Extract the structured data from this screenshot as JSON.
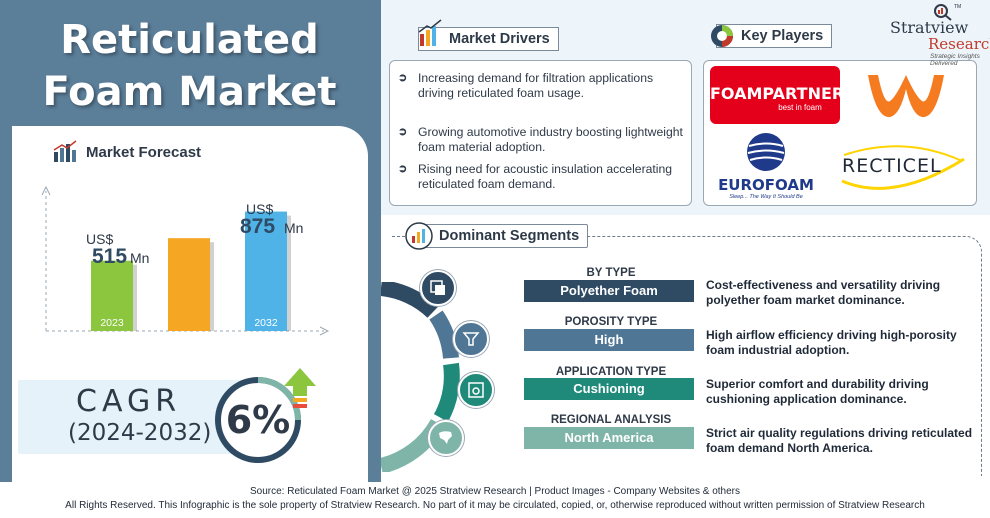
{
  "title": {
    "line1": "Reticulated",
    "line2": "Foam Market"
  },
  "forecast": {
    "heading": "Market Forecast",
    "bar1_currency": "US$",
    "bar1_value": "515",
    "bar1_unit": "Mn",
    "bar1_year": "2023",
    "bar3_currency": "US$",
    "bar3_value": "875",
    "bar3_unit": "Mn",
    "bar3_year": "2032"
  },
  "chart_data": {
    "type": "bar",
    "categories": [
      "2023",
      "",
      "2032"
    ],
    "values": [
      515,
      680,
      875
    ],
    "ylim": [
      0,
      1000
    ],
    "colors": [
      "#8cc63f",
      "#f5a623",
      "#4fb3e8"
    ]
  },
  "cagr": {
    "label": "CAGR",
    "period": "(2024-2032)",
    "value": "6%"
  },
  "drivers": {
    "heading": "Market Drivers",
    "items": [
      "Increasing demand for filtration applications driving reticulated foam usage.",
      "Growing automotive industry boosting lightweight foam material adoption.",
      "Rising need for acoustic insulation accelerating reticulated foam demand."
    ]
  },
  "players": {
    "heading": "Key Players",
    "foampartner": "FOAMPARTNER",
    "foampartner_tag": "best in foam",
    "eurofoam": "EUROFOAM",
    "eurofoam_tag": "Sleep... The Way It Should Be",
    "recticel": "RECTICEL"
  },
  "brand": {
    "name1": "Stratview",
    "name2": "Research",
    "tagline": "Strategic Insights Delivered",
    "tm": "TM"
  },
  "segments": {
    "heading": "Dominant Segments",
    "items": [
      {
        "label": "BY TYPE",
        "value": "Polyether Foam",
        "desc": "Cost-effectiveness and versatility driving polyether foam market dominance.",
        "color": "#2f4a63"
      },
      {
        "label": "POROSITY TYPE",
        "value": "High",
        "desc": "High airflow efficiency driving high-porosity foam industrial adoption.",
        "color": "#4f7694"
      },
      {
        "label": "APPLICATION TYPE",
        "value": "Cushioning",
        "desc": "Superior comfort and durability driving cushioning application dominance.",
        "color": "#1f8a7a"
      },
      {
        "label": "REGIONAL ANALYSIS",
        "value": "North America",
        "desc": "Strict air quality regulations driving reticulated foam demand North America.",
        "color": "#7fb5a8"
      }
    ]
  },
  "footer": {
    "line1": "Source:  Reticulated Foam Market @ 2025 Stratview Research | Product Images  - Company Websites & others",
    "line2": "All Rights Reserved. This Infographic is the sole property of Stratview Research. No part of it may be circulated, copied, or, otherwise reproduced without written permission of Stratview Research"
  }
}
